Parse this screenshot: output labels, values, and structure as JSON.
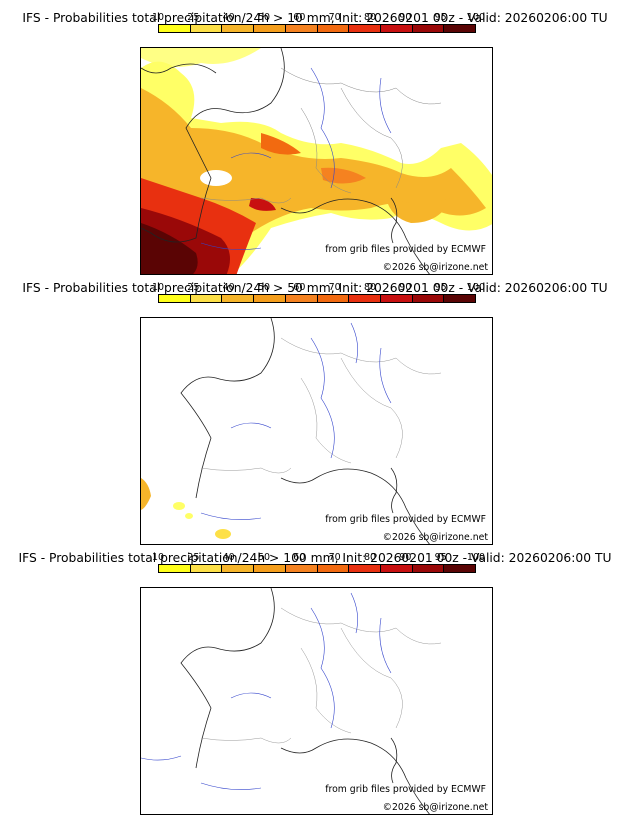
{
  "colorbar": {
    "ticks": [
      "10",
      "25",
      "40",
      "50",
      "60",
      "70",
      "80",
      "90",
      "95",
      "100"
    ],
    "colors": [
      "#ffff1a",
      "#fde047",
      "#f6b52a",
      "#f59e1c",
      "#f58220",
      "#f26a10",
      "#e83010",
      "#c81010",
      "#9a0808",
      "#5a0404"
    ]
  },
  "panels": [
    {
      "title": "IFS - Probabilities total precipitation/24h > 10 mm, Init: 20260201 00z - Valid: 20260206:00 TU",
      "credit_source": "from grib files provided by ECMWF",
      "credit_copyright": "©2026 sb@irizone.net",
      "intensity": "high"
    },
    {
      "title": "IFS - Probabilities total precipitation/24h > 50 mm, Init: 20260201 00z - Valid: 20260206:00 TU",
      "credit_source": "from grib files provided by ECMWF",
      "credit_copyright": "©2026 sb@irizone.net",
      "intensity": "low"
    },
    {
      "title": "IFS - Probabilities total precipitation/24h > 100 mm, Init: 20260201 00z - Valid: 20260206:00 TU",
      "credit_source": "from grib files provided by ECMWF",
      "credit_copyright": "©2026 sb@irizone.net",
      "intensity": "none"
    }
  ]
}
